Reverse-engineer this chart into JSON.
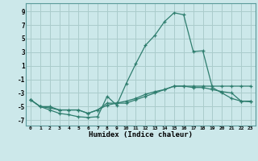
{
  "xlabel": "Humidex (Indice chaleur)",
  "bg_color": "#cce8ea",
  "grid_color": "#aacccc",
  "line_color": "#2e7d6e",
  "x_ticks": [
    0,
    1,
    2,
    3,
    4,
    5,
    6,
    7,
    8,
    9,
    10,
    11,
    12,
    13,
    14,
    15,
    16,
    17,
    18,
    19,
    20,
    21,
    22,
    23
  ],
  "y_ticks": [
    -7,
    -5,
    -3,
    -1,
    1,
    3,
    5,
    7,
    9
  ],
  "ylim": [
    -7.8,
    10.2
  ],
  "xlim": [
    -0.5,
    23.5
  ],
  "series": [
    {
      "x": [
        0,
        1,
        2,
        3,
        4,
        5,
        6,
        7,
        8,
        9,
        10,
        11,
        12,
        13,
        14,
        15,
        16,
        17,
        18,
        19,
        20,
        21,
        22,
        23
      ],
      "y": [
        -4.0,
        -5.0,
        -5.5,
        -6.0,
        -6.2,
        -6.5,
        -6.6,
        -6.5,
        -3.5,
        -4.8,
        -1.6,
        1.3,
        4.0,
        5.5,
        7.5,
        8.8,
        8.5,
        3.1,
        3.2,
        -2.2,
        -3.0,
        -3.8,
        -4.2,
        -4.2
      ]
    },
    {
      "x": [
        0,
        1,
        2,
        3,
        4,
        5,
        6,
        7,
        8,
        9,
        10,
        11,
        12,
        13,
        14,
        15,
        16,
        17,
        18,
        19,
        20,
        21,
        22,
        23
      ],
      "y": [
        -4.0,
        -5.0,
        -5.0,
        -5.5,
        -5.5,
        -5.5,
        -6.0,
        -5.5,
        -4.5,
        -4.5,
        -4.5,
        -4.0,
        -3.5,
        -3.0,
        -2.5,
        -2.0,
        -2.0,
        -2.2,
        -2.2,
        -2.5,
        -2.8,
        -3.0,
        -4.2,
        -4.3
      ]
    },
    {
      "x": [
        0,
        1,
        2,
        3,
        4,
        5,
        6,
        7,
        8,
        9,
        10,
        11,
        12,
        13,
        14,
        15,
        16,
        17,
        18,
        19,
        20,
        21,
        22,
        23
      ],
      "y": [
        -4.0,
        -5.0,
        -5.2,
        -5.5,
        -5.5,
        -5.5,
        -6.0,
        -5.5,
        -4.8,
        -4.5,
        -4.2,
        -3.8,
        -3.2,
        -2.8,
        -2.5,
        -2.0,
        -2.0,
        -2.0,
        -2.0,
        -2.0,
        -2.0,
        -2.0,
        -2.0,
        -2.0
      ]
    }
  ]
}
